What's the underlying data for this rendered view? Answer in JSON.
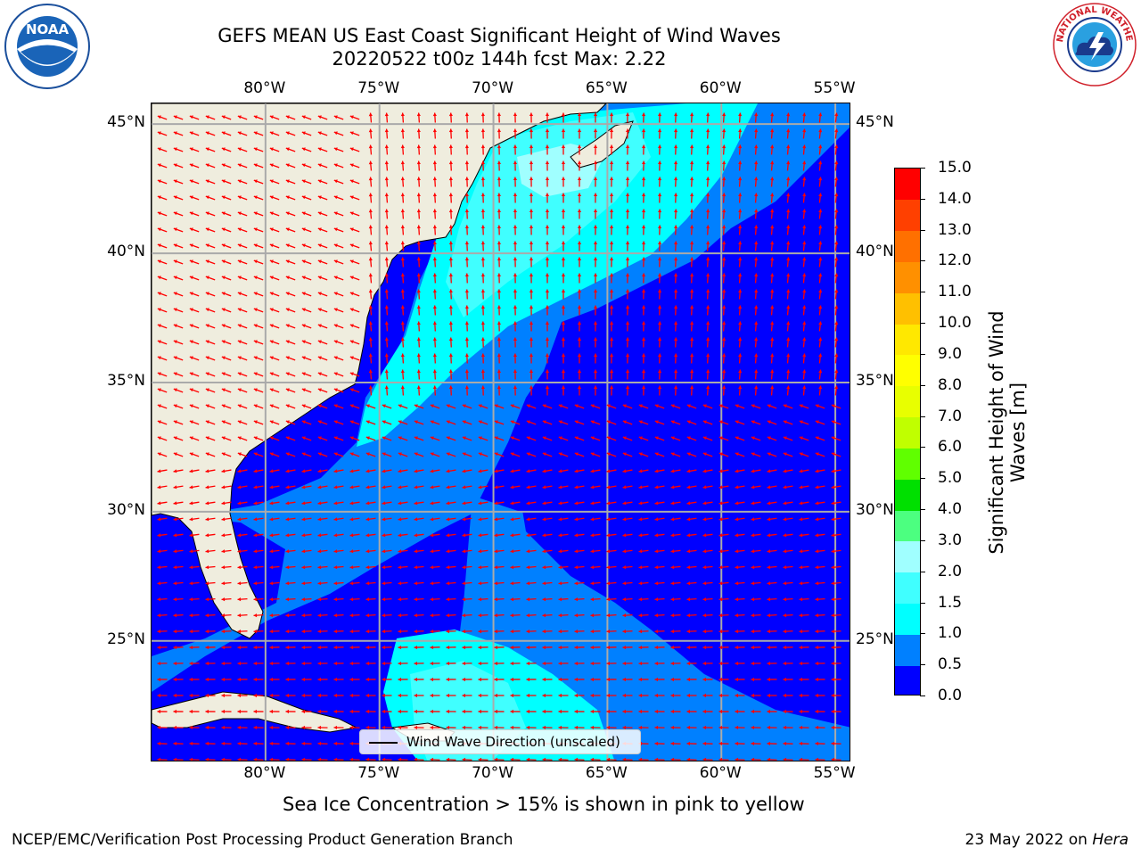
{
  "title": {
    "line1": "GEFS MEAN US East Coast Significant Height of Wind Waves",
    "line2": "20220522 t00z 144h fcst   Max: 2.22"
  },
  "logos": {
    "left": {
      "name": "noaa-logo",
      "text": "NOAA"
    },
    "right": {
      "name": "nws-logo",
      "text": "NATIONAL WEATHER SERVICE"
    }
  },
  "map": {
    "lon_labels": [
      "80°W",
      "75°W",
      "70°W",
      "65°W",
      "60°W",
      "55°W"
    ],
    "lat_labels": [
      "45°N",
      "40°N",
      "35°N",
      "30°N",
      "25°N"
    ],
    "extent": {
      "lon": [
        -85,
        -54.3
      ],
      "lat": [
        20.3,
        45.8
      ]
    },
    "gridlines": true,
    "colors": {
      "land": "#efedde",
      "grid": "#aaaaaa",
      "arrows": "#ff0000"
    }
  },
  "legend": {
    "label": "Wind Wave Direction (unscaled)"
  },
  "colorbar": {
    "title_line1": "Significant Height of Wind",
    "title_line2": "Waves [m]",
    "ticks": [
      "0.0",
      "0.5",
      "1.0",
      "1.5",
      "2.0",
      "3.0",
      "4.0",
      "5.0",
      "6.0",
      "7.0",
      "8.0",
      "9.0",
      "10.0",
      "11.0",
      "12.0",
      "13.0",
      "14.0",
      "15.0"
    ],
    "colors": [
      "#0000ff",
      "#0080ff",
      "#00ffff",
      "#40ffff",
      "#a0ffff",
      "#4cff80",
      "#00e000",
      "#60ff00",
      "#c0ff00",
      "#e8ff00",
      "#ffff00",
      "#ffe800",
      "#ffc000",
      "#ff9000",
      "#ff7000",
      "#ff4000",
      "#ff0000"
    ]
  },
  "note": "Sea Ice Concentration > 15% is shown in pink to yellow",
  "footer": {
    "left": "NCEP/EMC/Verification Post Processing Product Generation Branch",
    "right_date": "23 May 2022 on ",
    "right_host": "Hera"
  }
}
